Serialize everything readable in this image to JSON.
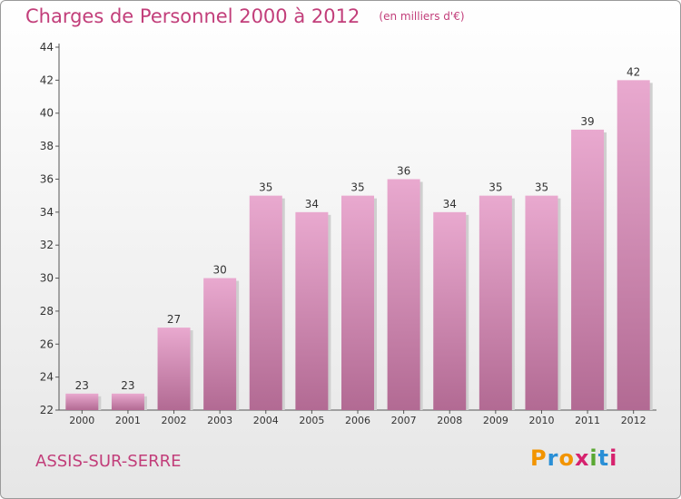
{
  "title": "Charges de Personnel 2000 à 2012",
  "subtitle": "(en milliers d'€)",
  "commune": "ASSIS-SUR-SERRE",
  "logo": {
    "letters": [
      "P",
      "r",
      "o",
      "x",
      "i",
      "t",
      "i"
    ],
    "colors": [
      "#f29400",
      "#2a8fd6",
      "#f29400",
      "#d6226e",
      "#5aa832",
      "#2a8fd6",
      "#d6226e"
    ]
  },
  "colors": {
    "bar_top": "#e9a9cf",
    "bar_bottom": "#b26a93",
    "accent": "#c23e7a"
  },
  "chart_data": {
    "type": "bar",
    "categories": [
      "2000",
      "2001",
      "2002",
      "2003",
      "2004",
      "2005",
      "2006",
      "2007",
      "2008",
      "2009",
      "2010",
      "2011",
      "2012"
    ],
    "values": [
      23,
      23,
      27,
      30,
      35,
      34,
      35,
      36,
      34,
      35,
      35,
      39,
      42
    ],
    "ylim": [
      22,
      44
    ],
    "yticks": [
      22,
      24,
      26,
      28,
      30,
      32,
      34,
      36,
      38,
      40,
      42,
      44
    ],
    "title": "Charges de Personnel 2000 à 2012",
    "xlabel": "",
    "ylabel": "",
    "grid": false
  }
}
